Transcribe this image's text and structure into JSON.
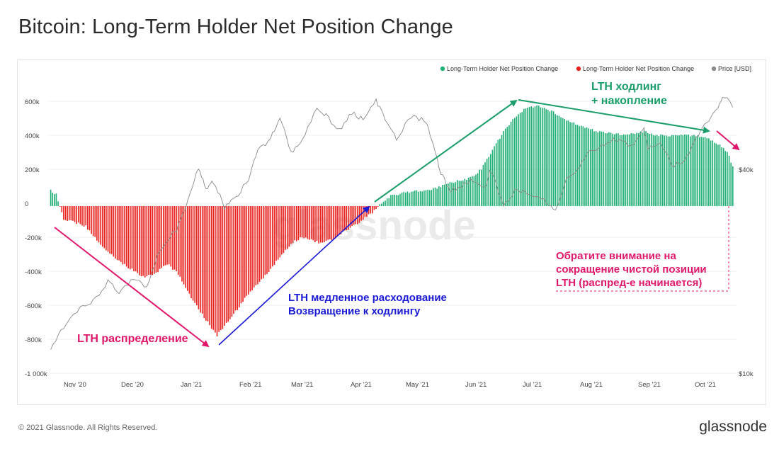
{
  "title": "Bitcoin: Long-Term Holder Net Position Change",
  "footer": {
    "copyright": "© 2021 Glassnode. All Rights Reserved.",
    "logo": "glassnode"
  },
  "watermark": "glassnode",
  "colors": {
    "positive": "#1fae73",
    "negative": "#e8231f",
    "price": "#8a8a8a",
    "annotation_pink": "#e0186c",
    "annotation_blue": "#1a1ad6",
    "annotation_green": "#1a9e6a"
  },
  "chart_data": {
    "type": "bar",
    "legend": {
      "position": "top-right",
      "items": [
        {
          "label": "Long-Term Holder Net Position Change",
          "color": "#1fae73"
        },
        {
          "label": "Long-Term Holder Net Position Change",
          "color": "#e8231f"
        },
        {
          "label": "Price [USD]",
          "color": "#8a8a8a"
        }
      ]
    },
    "y_left": {
      "ticks": [
        "600k",
        "400k",
        "200k",
        "0",
        "-200k",
        "-400k",
        "-600k",
        "-800k",
        "-1 000k"
      ],
      "range": [
        -1000000,
        600000
      ]
    },
    "y_right": {
      "ticks": [
        "$40k",
        "$10k"
      ],
      "scale": "log"
    },
    "x_ticks": [
      "Nov '20",
      "Dec '20",
      "Jan '21",
      "Feb '21",
      "Mar '21",
      "Apr '21",
      "May '21",
      "Jun '21",
      "Jul '21",
      "Aug '21",
      "Sep '21",
      "Oct '21"
    ],
    "x_range": [
      "2020-10-19",
      "2021-10-26"
    ],
    "series": [
      {
        "name": "Long-Term Holder Net Position Change",
        "unit": "BTC",
        "points": [
          [
            "2020-10-20",
            90000
          ],
          [
            "2020-10-23",
            70000
          ],
          [
            "2020-10-27",
            -80000
          ],
          [
            "2020-11-01",
            -90000
          ],
          [
            "2020-11-08",
            -120000
          ],
          [
            "2020-11-14",
            -200000
          ],
          [
            "2020-11-21",
            -280000
          ],
          [
            "2020-11-28",
            -340000
          ],
          [
            "2020-12-04",
            -380000
          ],
          [
            "2020-12-10",
            -420000
          ],
          [
            "2020-12-16",
            -390000
          ],
          [
            "2020-12-22",
            -340000
          ],
          [
            "2020-12-28",
            -400000
          ],
          [
            "2021-01-03",
            -520000
          ],
          [
            "2021-01-09",
            -620000
          ],
          [
            "2021-01-14",
            -700000
          ],
          [
            "2021-01-18",
            -760000
          ],
          [
            "2021-01-21",
            -720000
          ],
          [
            "2021-01-26",
            -650000
          ],
          [
            "2021-02-01",
            -560000
          ],
          [
            "2021-02-07",
            -480000
          ],
          [
            "2021-02-14",
            -400000
          ],
          [
            "2021-02-21",
            -300000
          ],
          [
            "2021-02-27",
            -220000
          ],
          [
            "2021-03-05",
            -180000
          ],
          [
            "2021-03-10",
            -200000
          ],
          [
            "2021-03-16",
            -220000
          ],
          [
            "2021-03-22",
            -190000
          ],
          [
            "2021-03-28",
            -150000
          ],
          [
            "2021-04-03",
            -110000
          ],
          [
            "2021-04-09",
            -60000
          ],
          [
            "2021-04-14",
            -20000
          ],
          [
            "2021-04-17",
            20000
          ],
          [
            "2021-04-22",
            60000
          ],
          [
            "2021-04-30",
            80000
          ],
          [
            "2021-05-08",
            90000
          ],
          [
            "2021-05-15",
            100000
          ],
          [
            "2021-05-22",
            130000
          ],
          [
            "2021-05-29",
            150000
          ],
          [
            "2021-06-05",
            170000
          ],
          [
            "2021-06-10",
            220000
          ],
          [
            "2021-06-16",
            330000
          ],
          [
            "2021-06-22",
            440000
          ],
          [
            "2021-06-28",
            520000
          ],
          [
            "2021-07-03",
            570000
          ],
          [
            "2021-07-09",
            590000
          ],
          [
            "2021-07-15",
            575000
          ],
          [
            "2021-07-21",
            540000
          ],
          [
            "2021-07-27",
            500000
          ],
          [
            "2021-08-03",
            470000
          ],
          [
            "2021-08-10",
            445000
          ],
          [
            "2021-08-17",
            430000
          ],
          [
            "2021-08-24",
            420000
          ],
          [
            "2021-08-31",
            425000
          ],
          [
            "2021-09-06",
            440000
          ],
          [
            "2021-09-12",
            420000
          ],
          [
            "2021-09-18",
            410000
          ],
          [
            "2021-09-24",
            420000
          ],
          [
            "2021-09-30",
            415000
          ],
          [
            "2021-10-06",
            410000
          ],
          [
            "2021-10-12",
            390000
          ],
          [
            "2021-10-17",
            360000
          ],
          [
            "2021-10-21",
            320000
          ],
          [
            "2021-10-24",
            230000
          ]
        ]
      },
      {
        "name": "Price [USD]",
        "unit": "USD",
        "points": [
          [
            "2020-10-20",
            11900
          ],
          [
            "2020-10-27",
            13600
          ],
          [
            "2020-11-05",
            15500
          ],
          [
            "2020-11-12",
            16300
          ],
          [
            "2020-11-20",
            18700
          ],
          [
            "2020-11-26",
            17200
          ],
          [
            "2020-12-04",
            19200
          ],
          [
            "2020-12-11",
            18000
          ],
          [
            "2020-12-18",
            23000
          ],
          [
            "2020-12-27",
            26500
          ],
          [
            "2021-01-02",
            32000
          ],
          [
            "2021-01-08",
            40500
          ],
          [
            "2021-01-12",
            35000
          ],
          [
            "2021-01-16",
            36800
          ],
          [
            "2021-01-22",
            31000
          ],
          [
            "2021-01-28",
            33000
          ],
          [
            "2021-02-04",
            37000
          ],
          [
            "2021-02-09",
            46000
          ],
          [
            "2021-02-16",
            49000
          ],
          [
            "2021-02-21",
            57000
          ],
          [
            "2021-02-27",
            45000
          ],
          [
            "2021-03-05",
            48500
          ],
          [
            "2021-03-13",
            61000
          ],
          [
            "2021-03-18",
            57500
          ],
          [
            "2021-03-25",
            52000
          ],
          [
            "2021-04-01",
            59000
          ],
          [
            "2021-04-07",
            56000
          ],
          [
            "2021-04-14",
            63500
          ],
          [
            "2021-04-19",
            56000
          ],
          [
            "2021-04-25",
            49000
          ],
          [
            "2021-05-03",
            57500
          ],
          [
            "2021-05-10",
            56000
          ],
          [
            "2021-05-14",
            49500
          ],
          [
            "2021-05-19",
            39000
          ],
          [
            "2021-05-24",
            34500
          ],
          [
            "2021-05-29",
            35500
          ],
          [
            "2021-06-04",
            37000
          ],
          [
            "2021-06-12",
            35500
          ],
          [
            "2021-06-15",
            40000
          ],
          [
            "2021-06-22",
            31000
          ],
          [
            "2021-06-28",
            34500
          ],
          [
            "2021-07-06",
            34000
          ],
          [
            "2021-07-14",
            32500
          ],
          [
            "2021-07-20",
            29800
          ],
          [
            "2021-07-26",
            37000
          ],
          [
            "2021-08-01",
            40000
          ],
          [
            "2021-08-07",
            44500
          ],
          [
            "2021-08-14",
            47000
          ],
          [
            "2021-08-22",
            49000
          ],
          [
            "2021-08-30",
            47000
          ],
          [
            "2021-09-06",
            52500
          ],
          [
            "2021-09-08",
            46000
          ],
          [
            "2021-09-15",
            48000
          ],
          [
            "2021-09-21",
            41000
          ],
          [
            "2021-09-28",
            42000
          ],
          [
            "2021-10-04",
            49000
          ],
          [
            "2021-10-10",
            55000
          ],
          [
            "2021-10-16",
            61500
          ],
          [
            "2021-10-20",
            66000
          ],
          [
            "2021-10-24",
            61000
          ]
        ]
      }
    ],
    "annotations": [
      {
        "text": "LTH распределение",
        "color": "#e0186c"
      },
      {
        "text": "LTH медленное расходование",
        "color": "#1a1ad6"
      },
      {
        "text": "Возвращение к ходлингу",
        "color": "#1a1ad6"
      },
      {
        "text": "LTH ходлинг",
        "color": "#1a9e6a"
      },
      {
        "text": "+ накопление",
        "color": "#1a9e6a"
      },
      {
        "text": "Обратите внимание на",
        "color": "#e0186c"
      },
      {
        "text": "сокращение чистой позиции",
        "color": "#e0186c"
      },
      {
        "text": "LTH (распред-е начинается)",
        "color": "#e0186c"
      }
    ]
  }
}
